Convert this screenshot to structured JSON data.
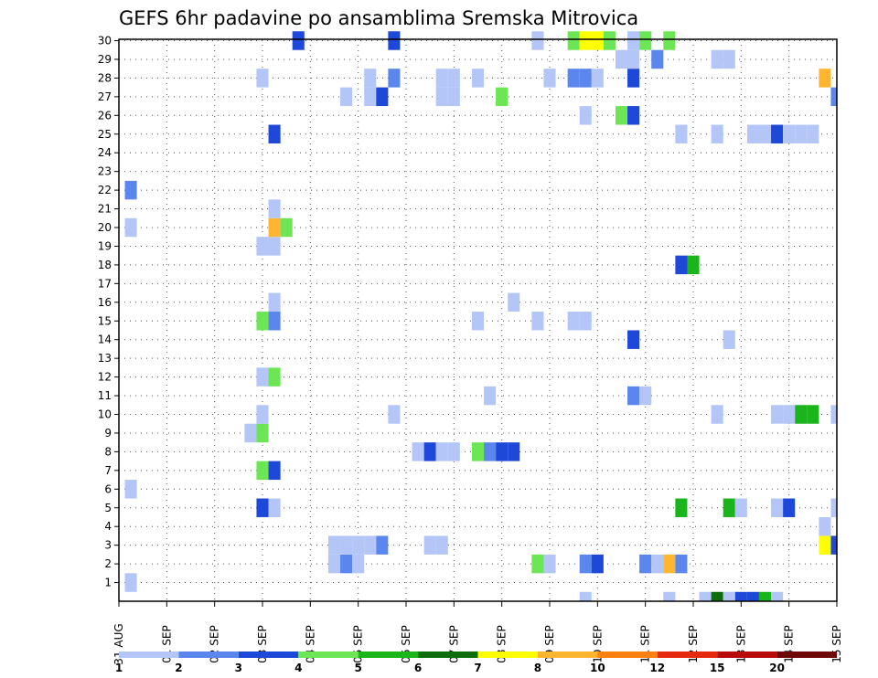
{
  "chart_data": {
    "type": "heatmap",
    "title": "GEFS 6hr padavine po ansamblima Sremska Mitrovica",
    "x_tick_labels": [
      "31 AUG",
      "01 SEP",
      "02 SEP",
      "03 SEP",
      "04 SEP",
      "05 SEP",
      "06 SEP",
      "07 SEP",
      "08 SEP",
      "09 SEP",
      "10 SEP",
      "11 SEP",
      "12 SEP",
      "13 SEP",
      "14 SEP",
      "15 SEP"
    ],
    "y_tick_labels": [
      "1",
      "2",
      "3",
      "4",
      "5",
      "6",
      "7",
      "8",
      "9",
      "10",
      "11",
      "12",
      "13",
      "14",
      "15",
      "16",
      "17",
      "18",
      "19",
      "20",
      "21",
      "22",
      "23",
      "24",
      "25",
      "26",
      "27",
      "28",
      "29",
      "30"
    ],
    "xlim": [
      0,
      15
    ],
    "ylim": [
      0,
      30
    ],
    "grid": true,
    "color_scale": {
      "labels": [
        "1",
        "2",
        "3",
        "4",
        "5",
        "6",
        "7",
        "8",
        "10",
        "12",
        "15",
        "20"
      ],
      "colors": [
        "#b3c6f7",
        "#5a86ee",
        "#1e48d8",
        "#6ce655",
        "#1ab51a",
        "#0e6e0e",
        "#ffff00",
        "#ffb530",
        "#ff7f10",
        "#e52a10",
        "#b80c0c",
        "#6e0808"
      ]
    },
    "cells": [
      {
        "t": 0.25,
        "m": 1,
        "c": 1
      },
      {
        "t": 0.25,
        "m": 6,
        "c": 1
      },
      {
        "t": 0.25,
        "m": 20,
        "c": 1
      },
      {
        "t": 0.25,
        "m": 22,
        "c": 2
      },
      {
        "t": 2.75,
        "m": 9,
        "c": 1
      },
      {
        "t": 3,
        "m": 5,
        "c": 3
      },
      {
        "t": 3,
        "m": 7,
        "c": 4
      },
      {
        "t": 3,
        "m": 9,
        "c": 4
      },
      {
        "t": 3,
        "m": 10,
        "c": 1
      },
      {
        "t": 3,
        "m": 12,
        "c": 1
      },
      {
        "t": 3,
        "m": 15,
        "c": 4
      },
      {
        "t": 3,
        "m": 19,
        "c": 1
      },
      {
        "t": 3,
        "m": 28,
        "c": 1
      },
      {
        "t": 3.25,
        "m": 5,
        "c": 1
      },
      {
        "t": 3.25,
        "m": 7,
        "c": 3
      },
      {
        "t": 3.25,
        "m": 12,
        "c": 4
      },
      {
        "t": 3.25,
        "m": 15,
        "c": 2
      },
      {
        "t": 3.25,
        "m": 16,
        "c": 1
      },
      {
        "t": 3.25,
        "m": 19,
        "c": 1
      },
      {
        "t": 3.25,
        "m": 20,
        "c": 8
      },
      {
        "t": 3.25,
        "m": 21,
        "c": 1
      },
      {
        "t": 3.25,
        "m": 25,
        "c": 3
      },
      {
        "t": 3.5,
        "m": 20,
        "c": 4
      },
      {
        "t": 3.75,
        "m": 30,
        "c": 3
      },
      {
        "t": 4.5,
        "m": 2,
        "c": 1
      },
      {
        "t": 4.5,
        "m": 3,
        "c": 1
      },
      {
        "t": 4.75,
        "m": 2,
        "c": 2
      },
      {
        "t": 4.75,
        "m": 3,
        "c": 1
      },
      {
        "t": 4.75,
        "m": 27,
        "c": 1
      },
      {
        "t": 5,
        "m": 2,
        "c": 1
      },
      {
        "t": 5,
        "m": 3,
        "c": 1
      },
      {
        "t": 5.25,
        "m": 3,
        "c": 1
      },
      {
        "t": 5.25,
        "m": 27,
        "c": 1
      },
      {
        "t": 5.25,
        "m": 28,
        "c": 1
      },
      {
        "t": 5.5,
        "m": 3,
        "c": 2
      },
      {
        "t": 5.5,
        "m": 27,
        "c": 3
      },
      {
        "t": 5.75,
        "m": 10,
        "c": 1
      },
      {
        "t": 5.75,
        "m": 28,
        "c": 2
      },
      {
        "t": 5.75,
        "m": 30,
        "c": 3
      },
      {
        "t": 6.25,
        "m": 8,
        "c": 1
      },
      {
        "t": 6.5,
        "m": 8,
        "c": 3
      },
      {
        "t": 6.5,
        "m": 3,
        "c": 1
      },
      {
        "t": 6.75,
        "m": 3,
        "c": 1
      },
      {
        "t": 6.75,
        "m": 8,
        "c": 1
      },
      {
        "t": 6.75,
        "m": 27,
        "c": 1
      },
      {
        "t": 6.75,
        "m": 28,
        "c": 1
      },
      {
        "t": 7,
        "m": 8,
        "c": 1
      },
      {
        "t": 7,
        "m": 27,
        "c": 1
      },
      {
        "t": 7,
        "m": 28,
        "c": 1
      },
      {
        "t": 7.5,
        "m": 8,
        "c": 4
      },
      {
        "t": 7.5,
        "m": 15,
        "c": 1
      },
      {
        "t": 7.5,
        "m": 28,
        "c": 1
      },
      {
        "t": 7.75,
        "m": 8,
        "c": 2
      },
      {
        "t": 7.75,
        "m": 11,
        "c": 1
      },
      {
        "t": 8,
        "m": 8,
        "c": 3
      },
      {
        "t": 8,
        "m": 27,
        "c": 4
      },
      {
        "t": 8.25,
        "m": 8,
        "c": 3
      },
      {
        "t": 8.25,
        "m": 16,
        "c": 1
      },
      {
        "t": 8.75,
        "m": 2,
        "c": 4
      },
      {
        "t": 8.75,
        "m": 15,
        "c": 1
      },
      {
        "t": 8.75,
        "m": 30,
        "c": 1
      },
      {
        "t": 9,
        "m": 2,
        "c": 1
      },
      {
        "t": 9,
        "m": 28,
        "c": 1
      },
      {
        "t": 9.5,
        "m": 15,
        "c": 1
      },
      {
        "t": 9.5,
        "m": 28,
        "c": 2
      },
      {
        "t": 9.5,
        "m": 30,
        "c": 4
      },
      {
        "t": 9.75,
        "m": 2,
        "c": 2
      },
      {
        "t": 9.75,
        "m": 15,
        "c": 1
      },
      {
        "t": 9.75,
        "m": 26,
        "c": 1
      },
      {
        "t": 9.75,
        "m": 28,
        "c": 2
      },
      {
        "t": 9.75,
        "m": 30,
        "c": 7
      },
      {
        "t": 10,
        "m": 2,
        "c": 3
      },
      {
        "t": 10,
        "m": 28,
        "c": 1
      },
      {
        "t": 10,
        "m": 30,
        "c": 7
      },
      {
        "t": 10.25,
        "m": 30,
        "c": 4
      },
      {
        "t": 10.5,
        "m": 26,
        "c": 4
      },
      {
        "t": 10.5,
        "m": 29,
        "c": 1
      },
      {
        "t": 10.75,
        "m": 11,
        "c": 2
      },
      {
        "t": 10.75,
        "m": 14,
        "c": 3
      },
      {
        "t": 10.75,
        "m": 26,
        "c": 3
      },
      {
        "t": 10.75,
        "m": 28,
        "c": 3
      },
      {
        "t": 10.75,
        "m": 29,
        "c": 1
      },
      {
        "t": 10.75,
        "m": 30,
        "c": 1
      },
      {
        "t": 11,
        "m": 2,
        "c": 2
      },
      {
        "t": 11,
        "m": 11,
        "c": 1
      },
      {
        "t": 11,
        "m": 30,
        "c": 4
      },
      {
        "t": 11.25,
        "m": 2,
        "c": 1
      },
      {
        "t": 11.25,
        "m": 29,
        "c": 2
      },
      {
        "t": 11.5,
        "m": 2,
        "c": 8
      },
      {
        "t": 11.5,
        "m": 30,
        "c": 4
      },
      {
        "t": 11.75,
        "m": 2,
        "c": 2
      },
      {
        "t": 11.75,
        "m": 5,
        "c": 5
      },
      {
        "t": 11.75,
        "m": 18,
        "c": 3
      },
      {
        "t": 11.75,
        "m": 25,
        "c": 1
      },
      {
        "t": 12,
        "m": 18,
        "c": 5
      },
      {
        "t": 12.5,
        "m": 10,
        "c": 1
      },
      {
        "t": 12.5,
        "m": 25,
        "c": 1
      },
      {
        "t": 12.5,
        "m": 29,
        "c": 1
      },
      {
        "t": 12.75,
        "m": 5,
        "c": 5
      },
      {
        "t": 12.75,
        "m": 14,
        "c": 1
      },
      {
        "t": 12.75,
        "m": 29,
        "c": 1
      },
      {
        "t": 13,
        "m": 5,
        "c": 1
      },
      {
        "t": 13.25,
        "m": 25,
        "c": 1
      },
      {
        "t": 13.5,
        "m": 25,
        "c": 1
      },
      {
        "t": 13.75,
        "m": 5,
        "c": 1
      },
      {
        "t": 13.75,
        "m": 10,
        "c": 1
      },
      {
        "t": 13.75,
        "m": 25,
        "c": 3
      },
      {
        "t": 14,
        "m": 5,
        "c": 3
      },
      {
        "t": 14,
        "m": 10,
        "c": 1
      },
      {
        "t": 14,
        "m": 25,
        "c": 1
      },
      {
        "t": 14.25,
        "m": 10,
        "c": 5
      },
      {
        "t": 14.25,
        "m": 25,
        "c": 1
      },
      {
        "t": 14.5,
        "m": 10,
        "c": 5
      },
      {
        "t": 14.5,
        "m": 25,
        "c": 1
      },
      {
        "t": 14.75,
        "m": 3,
        "c": 7
      },
      {
        "t": 14.75,
        "m": 4,
        "c": 1
      },
      {
        "t": 14.75,
        "m": 28,
        "c": 8
      },
      {
        "t": 15,
        "m": 3,
        "c": 3
      },
      {
        "t": 15,
        "m": 5,
        "c": 1
      },
      {
        "t": 15,
        "m": 10,
        "c": 1
      },
      {
        "t": 15,
        "m": 27,
        "c": 2
      }
    ],
    "bottom_row_cells": [
      {
        "t": 9.75,
        "c": 1
      },
      {
        "t": 11.5,
        "c": 1
      },
      {
        "t": 12.25,
        "c": 1
      },
      {
        "t": 12.5,
        "c": 6
      },
      {
        "t": 12.75,
        "c": 1
      },
      {
        "t": 13,
        "c": 3
      },
      {
        "t": 13.25,
        "c": 3
      },
      {
        "t": 13.5,
        "c": 5
      },
      {
        "t": 13.75,
        "c": 1
      }
    ]
  }
}
